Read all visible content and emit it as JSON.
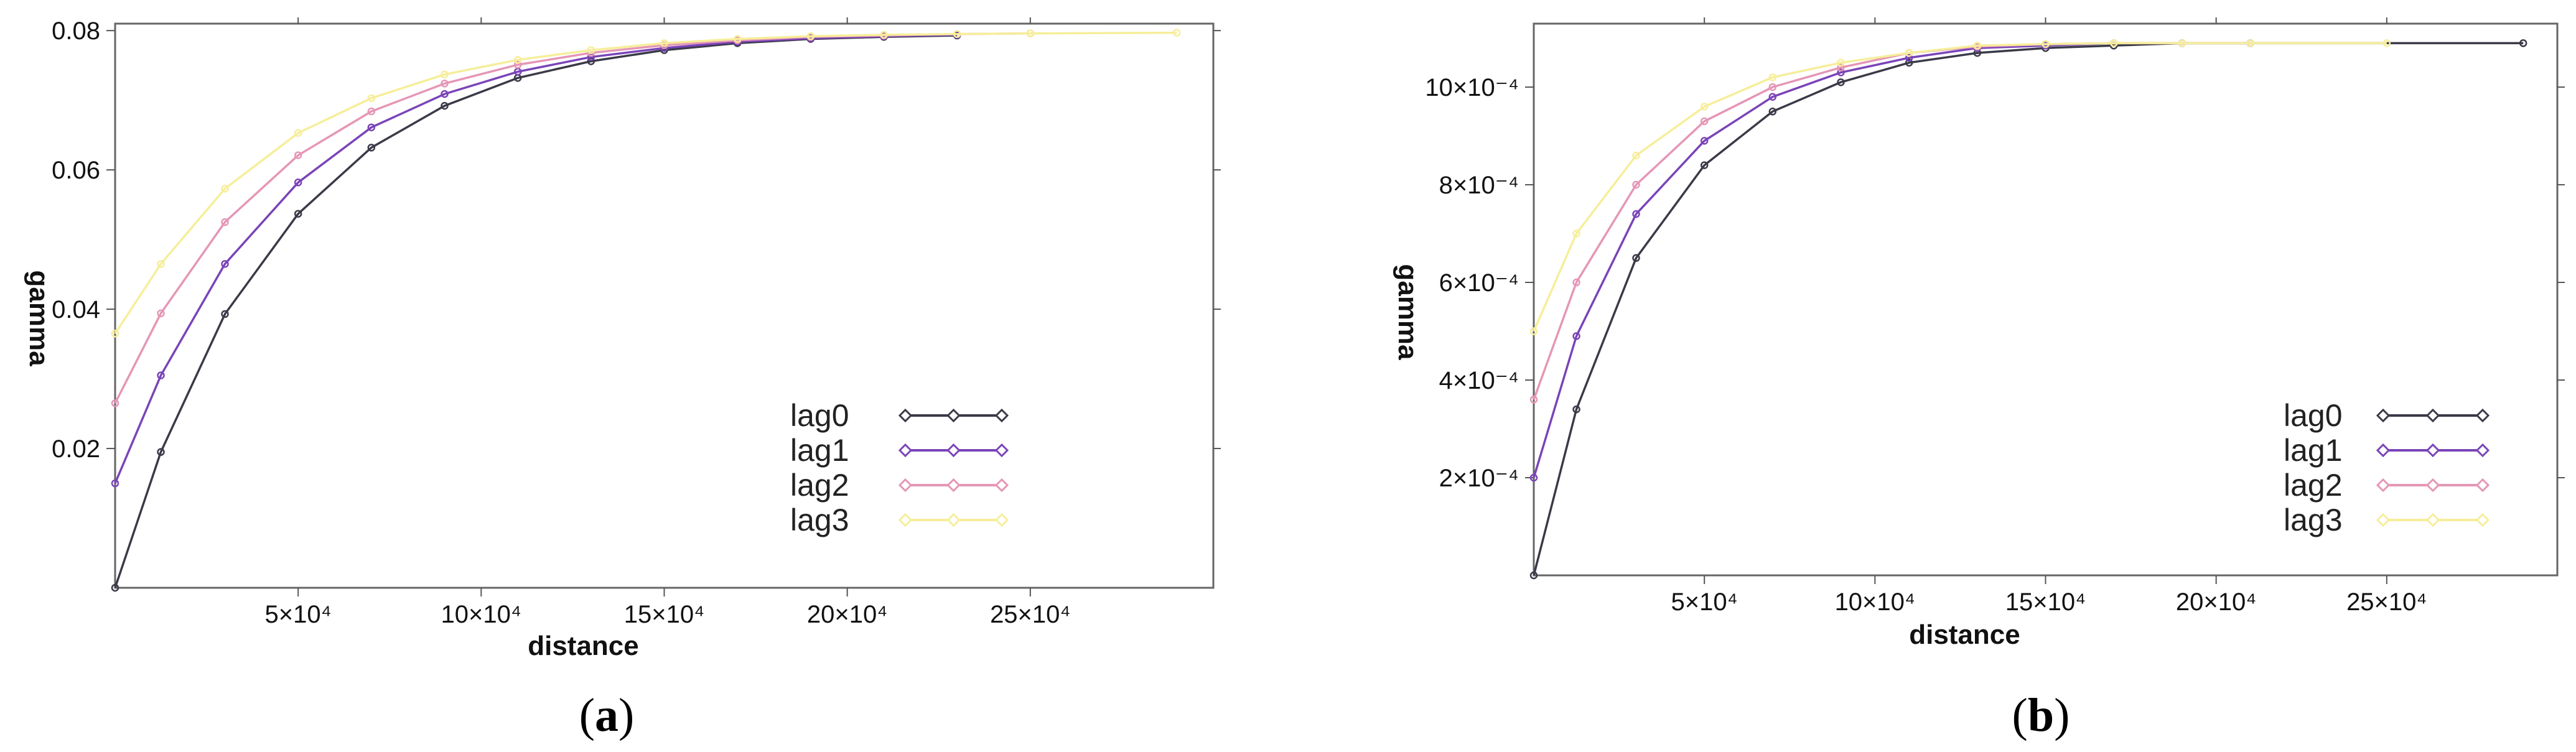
{
  "chart_data": [
    {
      "type": "line",
      "panel_label": "(a)",
      "panel_letter": "a",
      "xlabel": "distance",
      "ylabel": "gamma",
      "xlim": [
        0,
        300000
      ],
      "ylim": [
        0,
        0.081
      ],
      "xticks": [
        50000,
        100000,
        150000,
        200000,
        250000
      ],
      "xtick_labels": [
        "5×10⁴",
        "10×10⁴",
        "15×10⁴",
        "20×10⁴",
        "25×10⁴"
      ],
      "yticks": [
        0.02,
        0.04,
        0.06,
        0.08
      ],
      "ytick_labels": [
        "0.02",
        "0.04",
        "0.06",
        "0.08"
      ],
      "legend_position": "lower-right",
      "series": [
        {
          "name": "lag0",
          "color": "#3a3a48",
          "x": [
            0,
            12500,
            30000,
            50000,
            70000,
            90000,
            110000,
            130000,
            150000,
            170000,
            190000,
            210000,
            230000
          ],
          "y": [
            0.0,
            0.0195,
            0.0393,
            0.0537,
            0.0632,
            0.0692,
            0.0732,
            0.0756,
            0.0772,
            0.0782,
            0.0788,
            0.0791,
            0.0793
          ]
        },
        {
          "name": "lag1",
          "color": "#7a44b8",
          "x": [
            0,
            12500,
            30000,
            50000,
            70000,
            90000,
            110000,
            130000,
            150000,
            170000,
            190000,
            210000,
            230000
          ],
          "y": [
            0.015,
            0.0305,
            0.0465,
            0.0582,
            0.0661,
            0.0709,
            0.0741,
            0.0762,
            0.0775,
            0.0784,
            0.0789,
            0.0792,
            0.0794
          ]
        },
        {
          "name": "lag2",
          "color": "#e596b6",
          "x": [
            0,
            12500,
            30000,
            50000,
            70000,
            90000,
            110000,
            130000,
            150000,
            170000,
            190000,
            210000,
            230000,
            250000
          ],
          "y": [
            0.0265,
            0.0394,
            0.0525,
            0.0621,
            0.0684,
            0.0724,
            0.0751,
            0.0768,
            0.0779,
            0.0786,
            0.0791,
            0.0793,
            0.0795,
            0.0796
          ]
        },
        {
          "name": "lag3",
          "color": "#f6ee9a",
          "x": [
            0,
            12500,
            30000,
            50000,
            70000,
            90000,
            110000,
            130000,
            150000,
            170000,
            190000,
            210000,
            230000,
            250000,
            290000
          ],
          "y": [
            0.0365,
            0.0465,
            0.0573,
            0.0653,
            0.0703,
            0.0737,
            0.0758,
            0.0772,
            0.0782,
            0.0788,
            0.0792,
            0.0794,
            0.0795,
            0.0796,
            0.0797
          ]
        }
      ]
    },
    {
      "type": "line",
      "panel_label": "(b)",
      "panel_letter": "b",
      "xlabel": "distance",
      "ylabel": "gamma",
      "xlim": [
        0,
        300000
      ],
      "ylim": [
        0,
        0.00113
      ],
      "xticks": [
        50000,
        100000,
        150000,
        200000,
        250000
      ],
      "xtick_labels": [
        "5×10⁴",
        "10×10⁴",
        "15×10⁴",
        "20×10⁴",
        "25×10⁴"
      ],
      "yticks": [
        0.0002,
        0.0004,
        0.0006,
        0.0008,
        0.001
      ],
      "ytick_labels": [
        "2×10⁻⁴",
        "4×10⁻⁴",
        "6×10⁻⁴",
        "8×10⁻⁴",
        "10×10⁻⁴"
      ],
      "legend_position": "lower-right",
      "series": [
        {
          "name": "lag0",
          "color": "#3a3a48",
          "x": [
            0,
            12500,
            30000,
            50000,
            70000,
            90000,
            110000,
            130000,
            150000,
            170000,
            190000,
            210000,
            290000
          ],
          "y": [
            0.0,
            0.00034,
            0.00065,
            0.00084,
            0.00095,
            0.00101,
            0.00105,
            0.00107,
            0.00108,
            0.001085,
            0.00109,
            0.00109,
            0.00109
          ]
        },
        {
          "name": "lag1",
          "color": "#7a44b8",
          "x": [
            0,
            12500,
            30000,
            50000,
            70000,
            90000,
            110000,
            130000,
            150000,
            170000,
            190000,
            210000
          ],
          "y": [
            0.0002,
            0.00049,
            0.00074,
            0.00089,
            0.00098,
            0.00103,
            0.00106,
            0.00108,
            0.001085,
            0.00109,
            0.00109,
            0.00109
          ]
        },
        {
          "name": "lag2",
          "color": "#e596b6",
          "x": [
            0,
            12500,
            30000,
            50000,
            70000,
            90000,
            110000,
            130000,
            150000,
            170000,
            190000
          ],
          "y": [
            0.00036,
            0.0006,
            0.0008,
            0.00093,
            0.001,
            0.00104,
            0.00107,
            0.001083,
            0.001088,
            0.00109,
            0.00109
          ]
        },
        {
          "name": "lag3",
          "color": "#f6ee9a",
          "x": [
            0,
            12500,
            30000,
            50000,
            70000,
            90000,
            110000,
            130000,
            150000,
            170000,
            190000,
            210000,
            250000
          ],
          "y": [
            0.0005,
            0.0007,
            0.00086,
            0.00096,
            0.00102,
            0.00105,
            0.00107,
            0.001085,
            0.001088,
            0.00109,
            0.00109,
            0.00109,
            0.00109
          ]
        }
      ]
    }
  ]
}
